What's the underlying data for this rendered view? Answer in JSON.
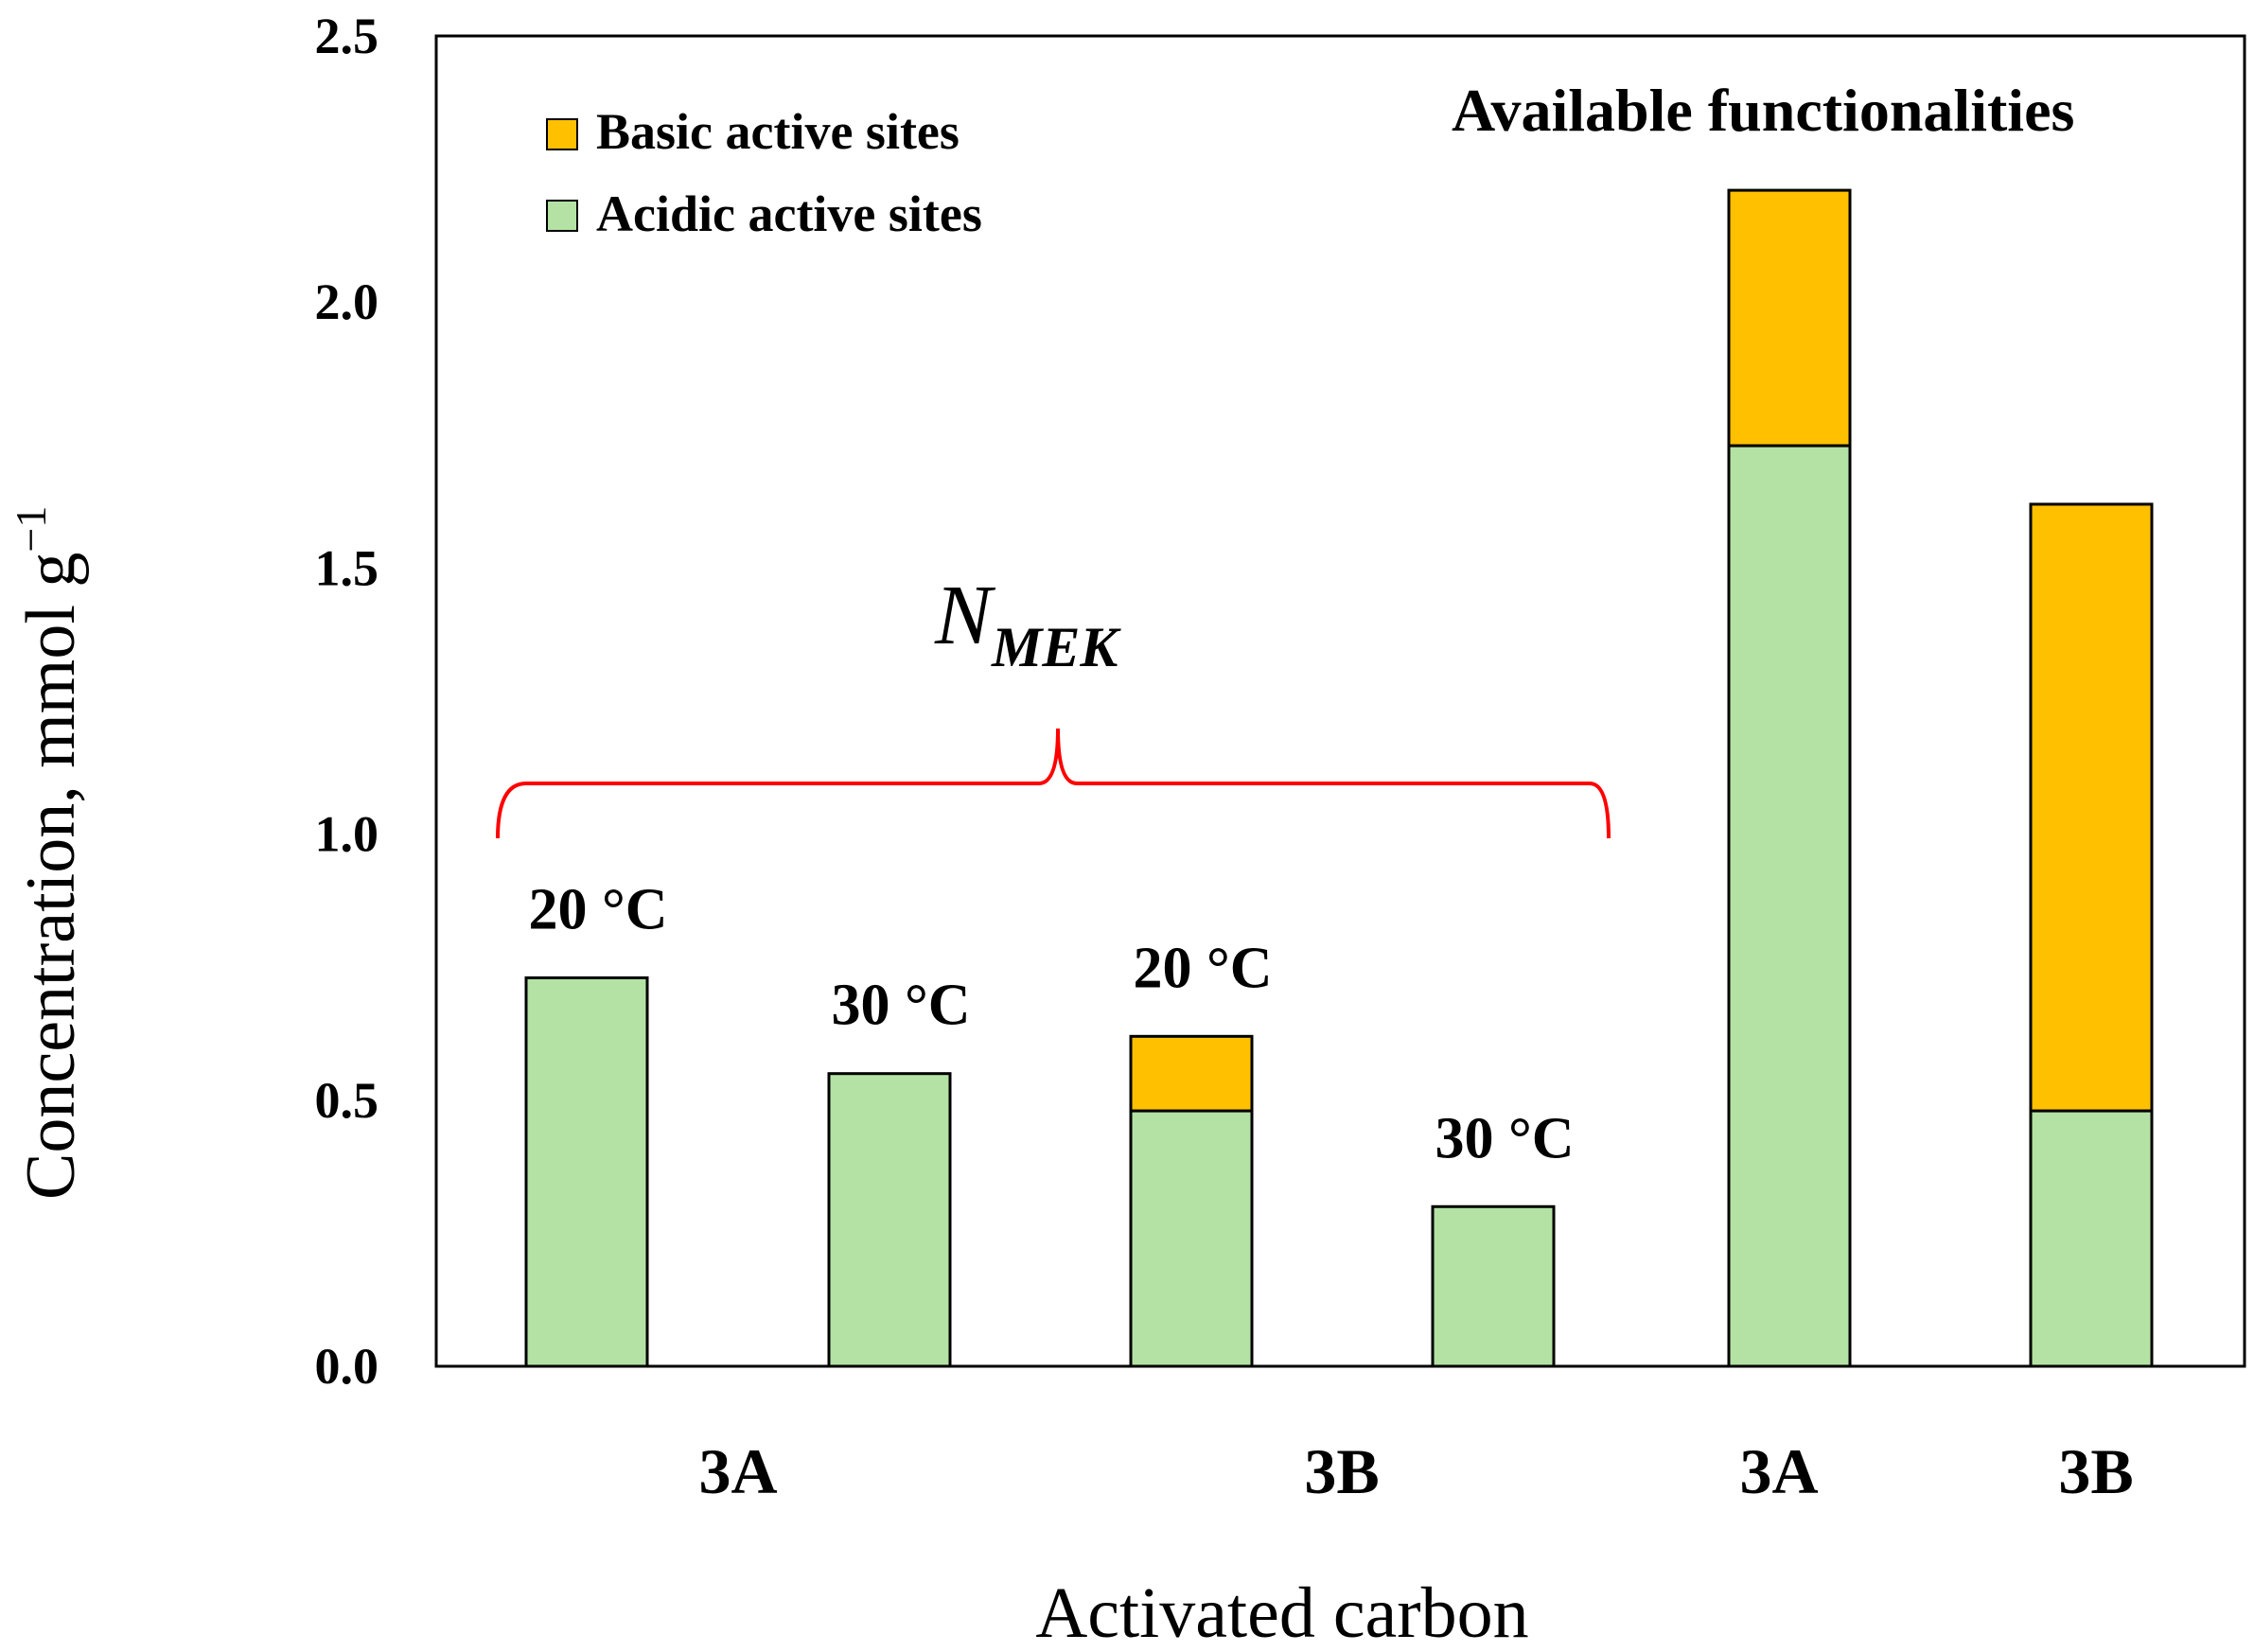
{
  "chart_data": {
    "type": "bar",
    "stacked": true,
    "ylabel": "Concentration, mmol g",
    "ylabel_superscript": "−1",
    "xlabel": "Activated carbon",
    "ylim": [
      0,
      2.5
    ],
    "yticks": [
      "0.0",
      "0.5",
      "1.0",
      "1.5",
      "2.0",
      "2.5"
    ],
    "bars": [
      {
        "label": "20 °C",
        "acidic": 0.73,
        "basic": 0.0
      },
      {
        "label": "30 °C",
        "acidic": 0.55,
        "basic": 0.0
      },
      {
        "label": "20 °C",
        "acidic": 0.48,
        "basic": 0.14
      },
      {
        "label": "30 °C",
        "acidic": 0.3,
        "basic": 0.0
      },
      {
        "label": "",
        "acidic": 1.73,
        "basic": 0.48
      },
      {
        "label": "",
        "acidic": 0.48,
        "basic": 1.14
      }
    ],
    "group_labels": [
      "3A",
      "3B",
      "3A",
      "3B"
    ],
    "series": [
      {
        "name": "Basic active sites",
        "color": "#ffc000"
      },
      {
        "name": "Acidic active sites",
        "color": "#b3e2a4"
      }
    ],
    "annotation_brace": {
      "main": "N",
      "subscript": "MEK"
    },
    "annotation_right": "Available functionalities"
  }
}
